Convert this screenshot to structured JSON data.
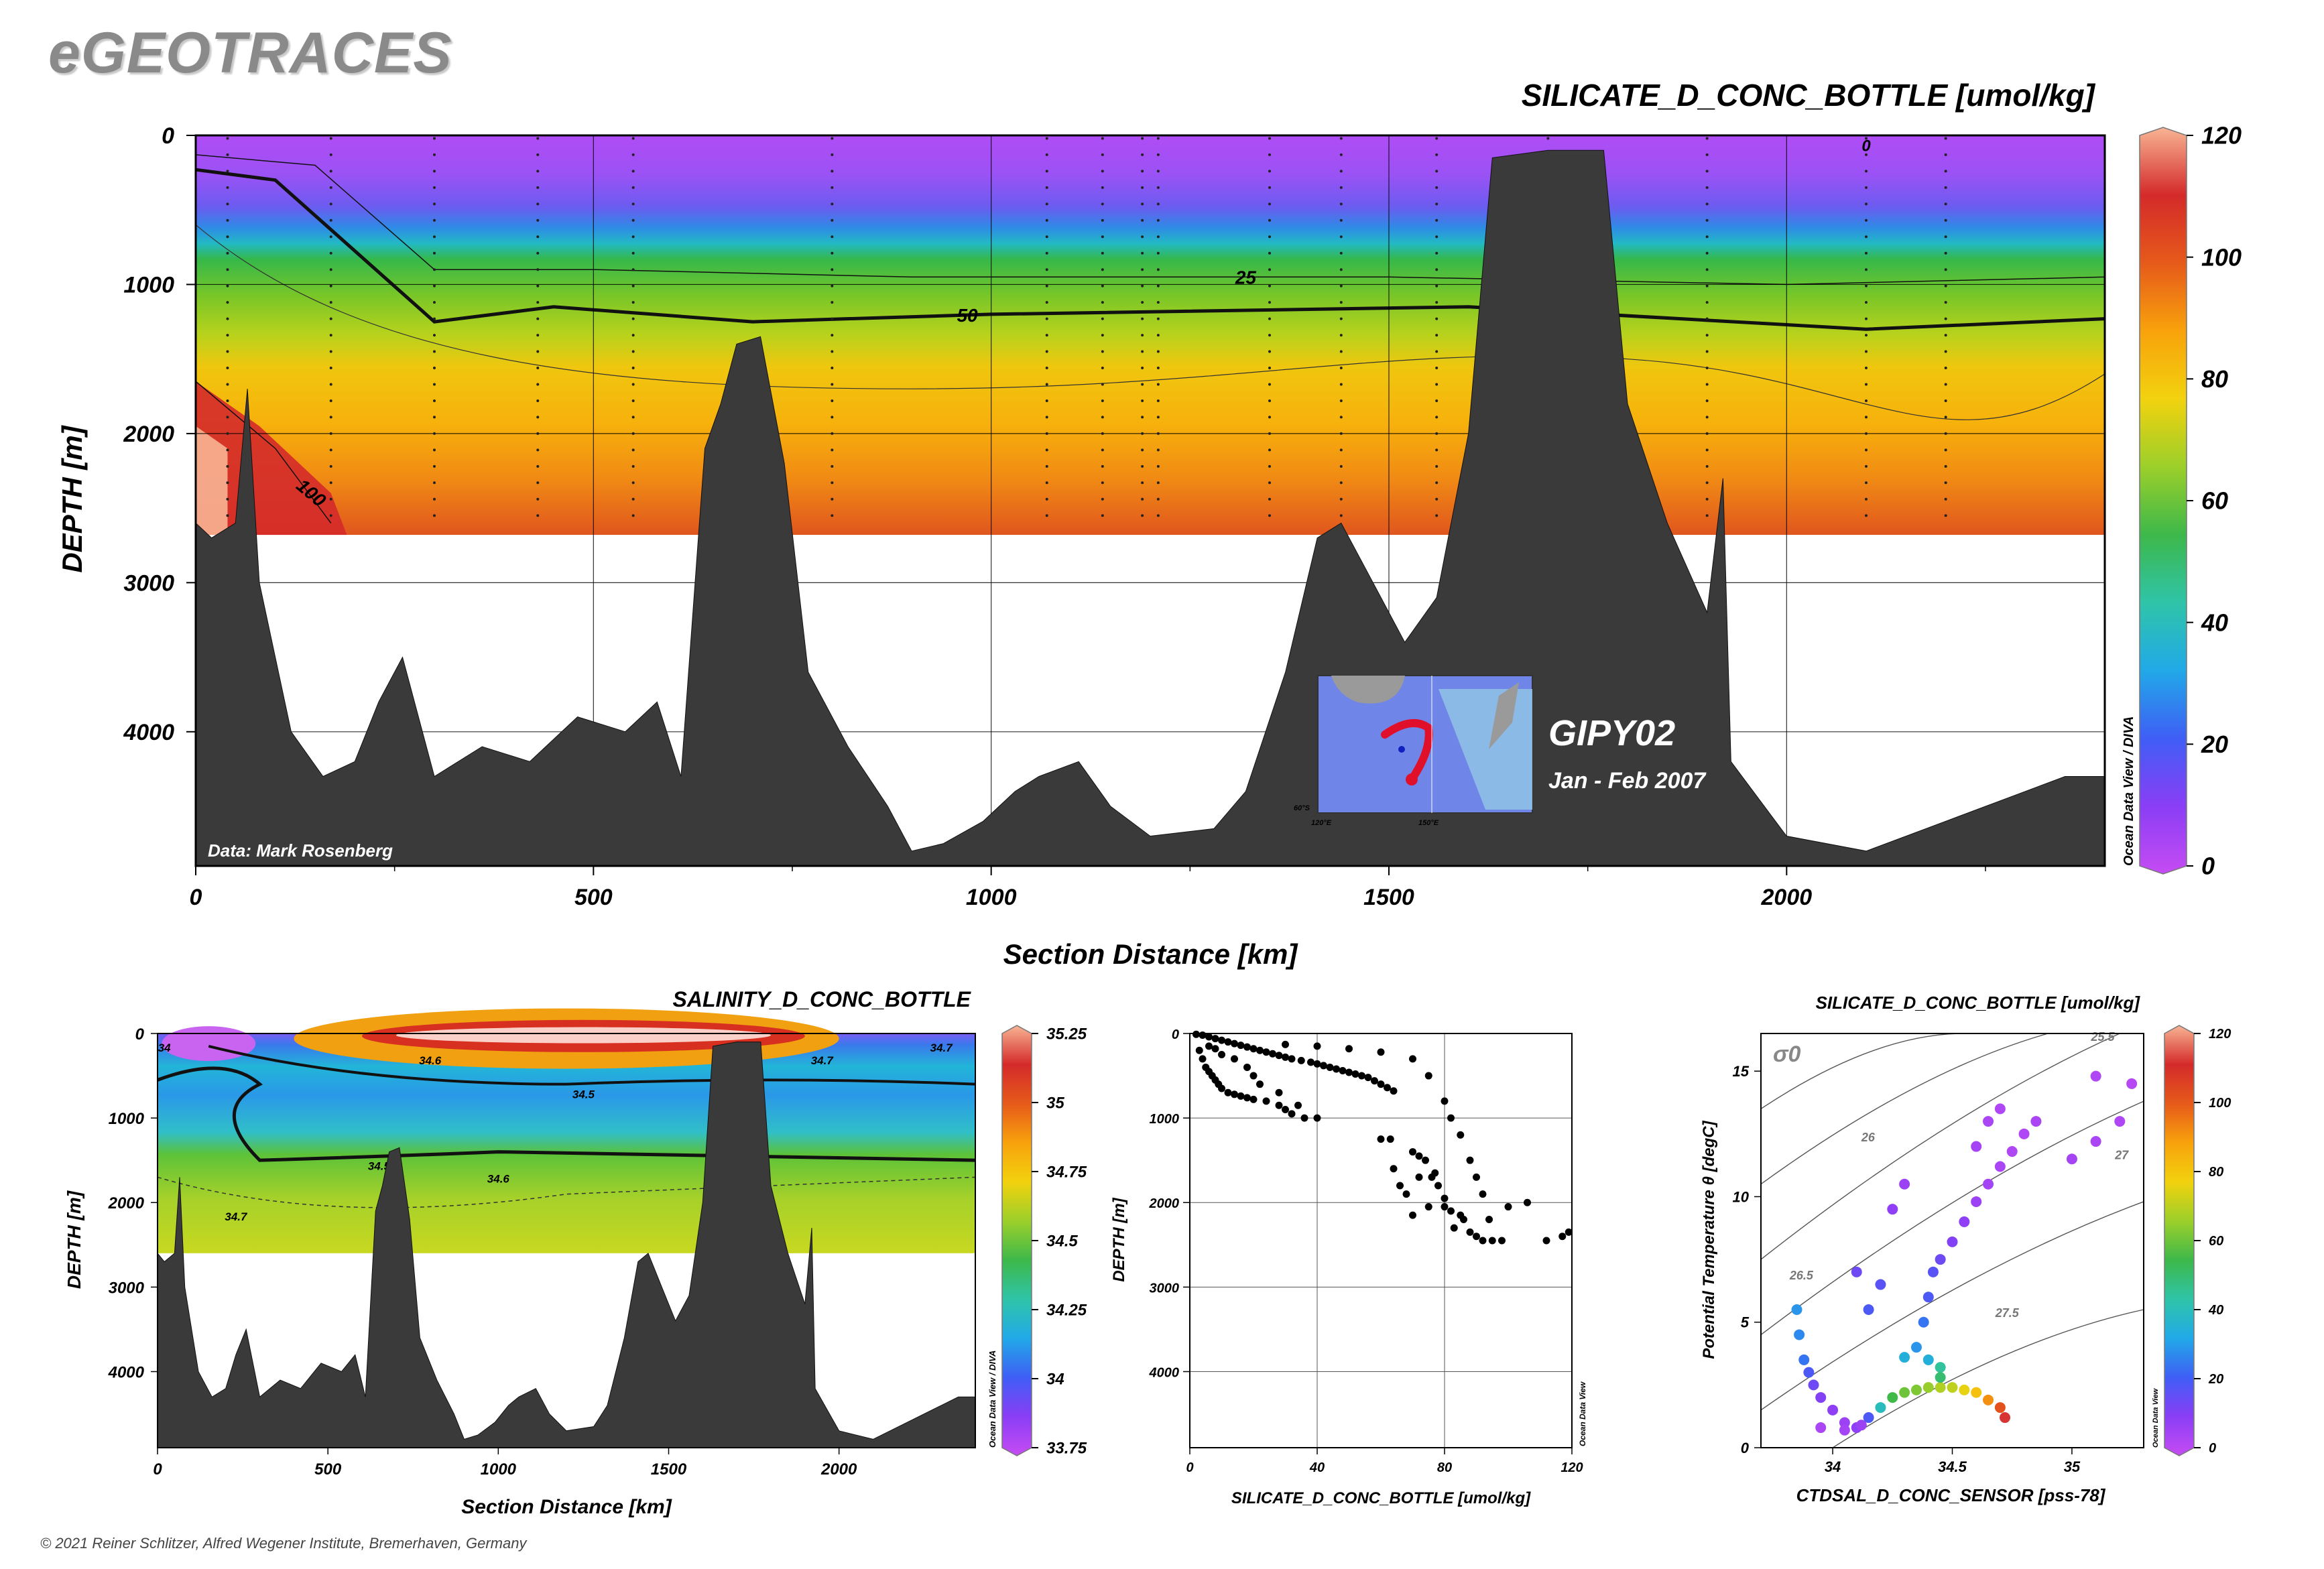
{
  "header": {
    "logo": "eGEOTRACES"
  },
  "footer": {
    "copyright": "© 2021 Reiner Schlitzer, Alfred Wegener Institute, Bremerhaven, Germany"
  },
  "colors": {
    "terrain": "#3a3a3a",
    "scale": [
      "#c64cf3",
      "#8a3ef5",
      "#3f5ef5",
      "#21a9e8",
      "#2fc4a8",
      "#3db84a",
      "#9ccf2a",
      "#f2d20e",
      "#f8a20c",
      "#e65a1a",
      "#d42a2a",
      "#f8b494"
    ]
  },
  "chart_data": [
    {
      "id": "main_section",
      "type": "heatmap",
      "title": "SILICATE_D_CONC_BOTTLE [umol/kg]",
      "xlabel": "Section Distance [km]",
      "ylabel": "DEPTH [m]",
      "xlim": [
        0,
        2400
      ],
      "ylim": [
        4900,
        0
      ],
      "xticks": [
        0,
        500,
        1000,
        1500,
        2000
      ],
      "yticks": [
        0,
        1000,
        2000,
        3000,
        4000
      ],
      "colorbar": {
        "range": [
          0,
          120
        ],
        "ticks": [
          0,
          20,
          40,
          60,
          80,
          100,
          120
        ],
        "label": "Ocean Data View / DIVA"
      },
      "contours": [
        {
          "label": "25",
          "at_km": 1320,
          "depth_profile": [
            [
              0,
              130
            ],
            [
              150,
              200
            ],
            [
              300,
              900
            ],
            [
              500,
              900
            ],
            [
              900,
              950
            ],
            [
              1500,
              950
            ],
            [
              2000,
              1000
            ],
            [
              2400,
              950
            ]
          ]
        },
        {
          "label": "50",
          "at_km": 970,
          "depth_profile": [
            [
              0,
              230
            ],
            [
              100,
              300
            ],
            [
              300,
              1250
            ],
            [
              450,
              1150
            ],
            [
              700,
              1250
            ],
            [
              1000,
              1200
            ],
            [
              1600,
              1150
            ],
            [
              2100,
              1300
            ],
            [
              2400,
              1230
            ]
          ]
        },
        {
          "label": "100",
          "at_km": 140,
          "depth_profile": [
            [
              0,
              1650
            ],
            [
              100,
              2100
            ],
            [
              170,
              2600
            ]
          ]
        }
      ],
      "annotations": [
        "Data: Mark Rosenberg",
        "GIPY02",
        "Jan - Feb 2007"
      ],
      "station_km": [
        40,
        170,
        300,
        430,
        550,
        800,
        1070,
        1140,
        1190,
        1210,
        1350,
        1440,
        1560,
        1700,
        1900,
        2100,
        2200
      ],
      "bathymetry_depth_m": [
        [
          0,
          2600
        ],
        [
          20,
          2700
        ],
        [
          50,
          2600
        ],
        [
          65,
          1700
        ],
        [
          80,
          3000
        ],
        [
          120,
          4000
        ],
        [
          160,
          4300
        ],
        [
          200,
          4200
        ],
        [
          230,
          3800
        ],
        [
          260,
          3500
        ],
        [
          300,
          4300
        ],
        [
          360,
          4100
        ],
        [
          420,
          4200
        ],
        [
          480,
          3900
        ],
        [
          540,
          4000
        ],
        [
          580,
          3800
        ],
        [
          610,
          4300
        ],
        [
          640,
          2100
        ],
        [
          660,
          1800
        ],
        [
          680,
          1400
        ],
        [
          710,
          1350
        ],
        [
          740,
          2200
        ],
        [
          770,
          3600
        ],
        [
          820,
          4100
        ],
        [
          870,
          4500
        ],
        [
          900,
          4800
        ],
        [
          940,
          4750
        ],
        [
          990,
          4600
        ],
        [
          1030,
          4400
        ],
        [
          1060,
          4300
        ],
        [
          1110,
          4200
        ],
        [
          1150,
          4500
        ],
        [
          1200,
          4700
        ],
        [
          1280,
          4650
        ],
        [
          1320,
          4400
        ],
        [
          1370,
          3600
        ],
        [
          1410,
          2700
        ],
        [
          1440,
          2600
        ],
        [
          1480,
          3000
        ],
        [
          1520,
          3400
        ],
        [
          1560,
          3100
        ],
        [
          1600,
          2000
        ],
        [
          1630,
          150
        ],
        [
          1700,
          100
        ],
        [
          1770,
          100
        ],
        [
          1800,
          1800
        ],
        [
          1850,
          2600
        ],
        [
          1900,
          3200
        ],
        [
          1920,
          2300
        ],
        [
          1930,
          4200
        ],
        [
          2000,
          4700
        ],
        [
          2100,
          4800
        ],
        [
          2200,
          4600
        ],
        [
          2300,
          4400
        ],
        [
          2350,
          4300
        ],
        [
          2400,
          4300
        ]
      ]
    },
    {
      "id": "salinity_section",
      "type": "heatmap",
      "title": "SALINITY_D_CONC_BOTTLE",
      "xlabel": "Section Distance [km]",
      "ylabel": "DEPTH [m]",
      "xlim": [
        0,
        2400
      ],
      "ylim": [
        4900,
        0
      ],
      "xticks": [
        0,
        500,
        1000,
        1500,
        2000
      ],
      "yticks": [
        0,
        1000,
        2000,
        3000,
        4000
      ],
      "colorbar": {
        "range": [
          33.75,
          35.25
        ],
        "ticks": [
          "33.75",
          "34",
          "34.25",
          "34.5",
          "34.75",
          "35",
          "35.25"
        ],
        "label": "Ocean Data View / DIVA"
      },
      "contour_labels": [
        {
          "label": "34",
          "at_km": 20,
          "depth": 150
        },
        {
          "label": "34.6",
          "at_km": 800,
          "depth": 300
        },
        {
          "label": "34.5",
          "at_km": 1250,
          "depth": 700
        },
        {
          "label": "34.7",
          "at_km": 1950,
          "depth": 300
        },
        {
          "label": "34.7",
          "at_km": 2300,
          "depth": 150
        },
        {
          "label": "34.5",
          "at_km": 650,
          "depth": 1550
        },
        {
          "label": "34.6",
          "at_km": 1000,
          "depth": 1700
        },
        {
          "label": "34.7",
          "at_km": 230,
          "depth": 2150
        }
      ]
    },
    {
      "id": "profile_scatter",
      "type": "scatter",
      "xlabel": "SILICATE_D_CONC_BOTTLE [umol/kg]",
      "ylabel": "DEPTH [m]",
      "xlim": [
        0,
        120
      ],
      "ylim": [
        4900,
        0
      ],
      "xticks": [
        0,
        40,
        80,
        120
      ],
      "yticks": [
        0,
        1000,
        2000,
        3000,
        4000
      ],
      "side_label": "Ocean Data View",
      "points": [
        [
          2,
          10
        ],
        [
          4,
          20
        ],
        [
          6,
          40
        ],
        [
          8,
          60
        ],
        [
          10,
          80
        ],
        [
          12,
          100
        ],
        [
          14,
          120
        ],
        [
          16,
          140
        ],
        [
          18,
          160
        ],
        [
          20,
          180
        ],
        [
          22,
          200
        ],
        [
          24,
          220
        ],
        [
          26,
          240
        ],
        [
          28,
          260
        ],
        [
          30,
          280
        ],
        [
          32,
          300
        ],
        [
          35,
          320
        ],
        [
          38,
          340
        ],
        [
          40,
          360
        ],
        [
          42,
          380
        ],
        [
          44,
          400
        ],
        [
          46,
          420
        ],
        [
          48,
          440
        ],
        [
          50,
          460
        ],
        [
          52,
          480
        ],
        [
          54,
          500
        ],
        [
          56,
          520
        ],
        [
          58,
          560
        ],
        [
          60,
          600
        ],
        [
          62,
          640
        ],
        [
          64,
          680
        ],
        [
          3,
          200
        ],
        [
          4,
          300
        ],
        [
          5,
          400
        ],
        [
          6,
          450
        ],
        [
          7,
          500
        ],
        [
          8,
          550
        ],
        [
          9,
          600
        ],
        [
          10,
          650
        ],
        [
          12,
          700
        ],
        [
          14,
          720
        ],
        [
          16,
          740
        ],
        [
          18,
          760
        ],
        [
          20,
          780
        ],
        [
          24,
          800
        ],
        [
          28,
          850
        ],
        [
          30,
          900
        ],
        [
          32,
          950
        ],
        [
          36,
          1000
        ],
        [
          40,
          1000
        ],
        [
          34,
          850
        ],
        [
          28,
          700
        ],
        [
          22,
          600
        ],
        [
          20,
          500
        ],
        [
          18,
          400
        ],
        [
          14,
          300
        ],
        [
          10,
          250
        ],
        [
          8,
          180
        ],
        [
          6,
          150
        ],
        [
          30,
          130
        ],
        [
          40,
          150
        ],
        [
          50,
          180
        ],
        [
          60,
          220
        ],
        [
          70,
          300
        ],
        [
          75,
          500
        ],
        [
          80,
          800
        ],
        [
          82,
          1000
        ],
        [
          85,
          1200
        ],
        [
          88,
          1500
        ],
        [
          90,
          1700
        ],
        [
          92,
          1900
        ],
        [
          60,
          1250
        ],
        [
          63,
          1250
        ],
        [
          70,
          1400
        ],
        [
          72,
          1450
        ],
        [
          74,
          1500
        ],
        [
          76,
          1700
        ],
        [
          78,
          1800
        ],
        [
          80,
          2050
        ],
        [
          82,
          2100
        ],
        [
          85,
          2150
        ],
        [
          88,
          2350
        ],
        [
          90,
          2400
        ],
        [
          95,
          2450
        ],
        [
          100,
          2050
        ],
        [
          106,
          2000
        ],
        [
          112,
          2450
        ],
        [
          117,
          2400
        ],
        [
          119,
          2350
        ],
        [
          75,
          2050
        ],
        [
          70,
          2150
        ],
        [
          68,
          1900
        ],
        [
          66,
          1800
        ],
        [
          64,
          1600
        ],
        [
          72,
          1700
        ],
        [
          77,
          1650
        ],
        [
          80,
          1950
        ],
        [
          83,
          2300
        ],
        [
          86,
          2200
        ],
        [
          94,
          2200
        ],
        [
          98,
          2450
        ],
        [
          92,
          2450
        ]
      ]
    },
    {
      "id": "ts_diagram",
      "type": "scatter",
      "title": "SILICATE_D_CONC_BOTTLE [umol/kg]",
      "xlabel": "CTDSAL_D_CONC_SENSOR [pss-78]",
      "ylabel": "Potential Temperature θ [degC]",
      "xlim": [
        33.7,
        35.3
      ],
      "ylim": [
        0,
        16.5
      ],
      "xticks": [
        "34",
        "34.5",
        "35"
      ],
      "yticks": [
        0,
        5,
        10,
        15
      ],
      "sigma_label": "σ0",
      "isopycnal_labels": [
        "25.5",
        "26",
        "26.5",
        "27",
        "27.5"
      ],
      "colorbar": {
        "range": [
          0,
          120
        ],
        "ticks": [
          0,
          20,
          40,
          60,
          80,
          100,
          120
        ],
        "label": "Ocean Data View"
      },
      "points": [
        [
          33.85,
          5.5,
          30
        ],
        [
          33.86,
          4.5,
          28
        ],
        [
          33.88,
          3.5,
          25
        ],
        [
          33.9,
          3,
          20
        ],
        [
          33.92,
          2.5,
          15
        ],
        [
          33.95,
          2,
          12
        ],
        [
          34.0,
          1.5,
          10
        ],
        [
          34.05,
          1,
          8
        ],
        [
          34.1,
          0.8,
          10
        ],
        [
          34.15,
          1.2,
          20
        ],
        [
          34.2,
          1.6,
          40
        ],
        [
          34.25,
          2,
          55
        ],
        [
          34.3,
          2.2,
          60
        ],
        [
          34.35,
          2.3,
          62
        ],
        [
          34.4,
          2.4,
          65
        ],
        [
          34.45,
          2.4,
          68
        ],
        [
          34.5,
          2.4,
          70
        ],
        [
          34.55,
          2.3,
          75
        ],
        [
          34.6,
          2.2,
          80
        ],
        [
          34.65,
          1.9,
          90
        ],
        [
          34.7,
          1.6,
          100
        ],
        [
          34.72,
          1.2,
          110
        ],
        [
          34.35,
          4,
          30
        ],
        [
          34.38,
          5,
          25
        ],
        [
          34.4,
          6,
          20
        ],
        [
          34.42,
          7,
          18
        ],
        [
          34.45,
          7.5,
          15
        ],
        [
          34.5,
          8.2,
          12
        ],
        [
          34.55,
          9,
          10
        ],
        [
          34.6,
          9.8,
          8
        ],
        [
          34.65,
          10.5,
          6
        ],
        [
          34.7,
          11.2,
          5
        ],
        [
          34.75,
          11.8,
          4
        ],
        [
          34.8,
          12.5,
          4
        ],
        [
          34.85,
          13,
          5
        ],
        [
          34.6,
          12,
          6
        ],
        [
          34.65,
          13,
          5
        ],
        [
          34.7,
          13.5,
          4
        ],
        [
          35.0,
          11.5,
          6
        ],
        [
          35.1,
          12.2,
          5
        ],
        [
          35.2,
          13,
          4
        ],
        [
          35.25,
          14.5,
          3
        ],
        [
          35.1,
          14.8,
          4
        ],
        [
          34.25,
          9.5,
          10
        ],
        [
          34.3,
          10.5,
          8
        ],
        [
          34.1,
          7,
          15
        ],
        [
          34.2,
          6.5,
          18
        ],
        [
          34.15,
          5.5,
          20
        ],
        [
          34.4,
          3.5,
          35
        ],
        [
          34.45,
          3.2,
          45
        ],
        [
          34.45,
          2.8,
          50
        ],
        [
          34.3,
          3.6,
          35
        ],
        [
          33.95,
          0.8,
          5
        ],
        [
          34.05,
          0.7,
          6
        ],
        [
          34.12,
          0.9,
          8
        ]
      ]
    }
  ],
  "inset": {
    "title": "GIPY02",
    "dates": "Jan - Feb 2007",
    "lat_label": "60°S",
    "lon_labels": [
      "120°E",
      "150°E"
    ]
  },
  "credits": {
    "data": "Data: Mark Rosenberg"
  }
}
